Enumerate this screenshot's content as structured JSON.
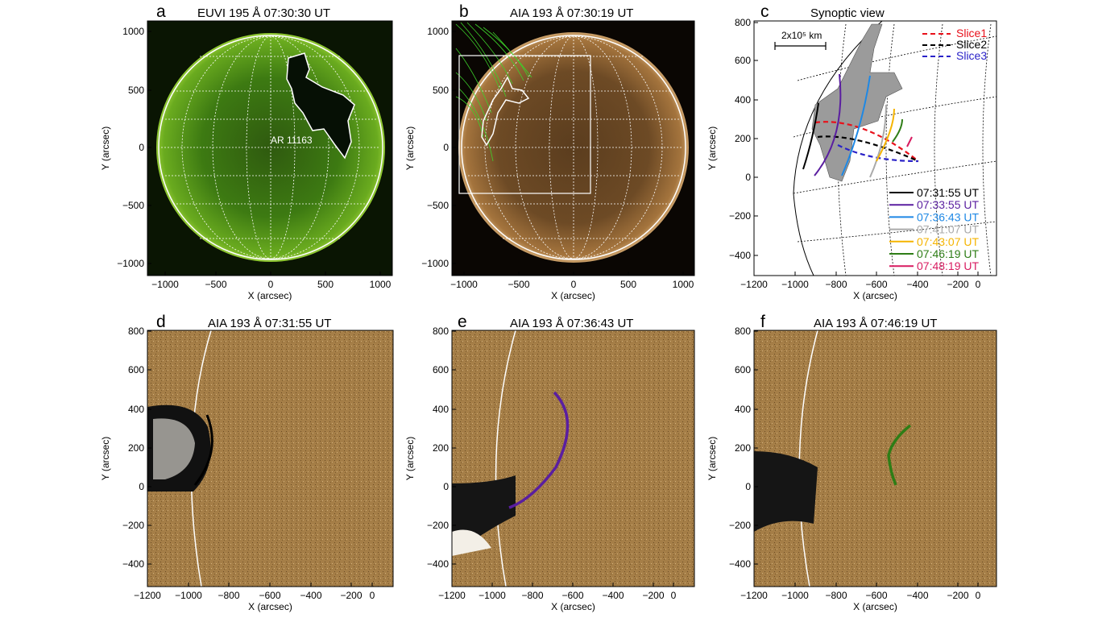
{
  "figure": {
    "panels": [
      {
        "letter": "a",
        "title": "EUVI 195 Å 07:30:30 UT",
        "xlabel": "X (arcsec)",
        "ylabel": "Y (arcsec)",
        "xticks": [
          "−1000",
          "−500",
          "0",
          "500",
          "1000"
        ],
        "yticks": [
          "1000",
          "500",
          "0",
          "−500",
          "−1000"
        ],
        "annotation": "AR 11163"
      },
      {
        "letter": "b",
        "title": "AIA 193 Å 07:30:19 UT",
        "xlabel": "X (arcsec)",
        "ylabel": "Y (arcsec)",
        "xticks": [
          "−1000",
          "−500",
          "0",
          "500",
          "1000"
        ],
        "yticks": [
          "1000",
          "500",
          "0",
          "−500",
          "−1000"
        ]
      },
      {
        "letter": "c",
        "title": "Synoptic view",
        "xlabel": "X (arcsec)",
        "ylabel": "Y (arcsec)",
        "xticks": [
          "−1200",
          "−1000",
          "−800",
          "−600",
          "−400",
          "−200",
          "0"
        ],
        "yticks": [
          "800",
          "600",
          "400",
          "200",
          "0",
          "−200",
          "−400"
        ],
        "scalebar": "2x10⁵ km",
        "slices": [
          {
            "label": "Slice1",
            "color": "#e8111b"
          },
          {
            "label": "Slice2",
            "color": "#000000"
          },
          {
            "label": "Slice3",
            "color": "#2a22c8"
          }
        ],
        "times": [
          {
            "label": "07:31:55 UT",
            "color": "#000000"
          },
          {
            "label": "07:33:55 UT",
            "color": "#5a1ea0"
          },
          {
            "label": "07:36:43 UT",
            "color": "#1e88e5"
          },
          {
            "label": "07:41:07 UT",
            "color": "#aaaaaa"
          },
          {
            "label": "07:43:07 UT",
            "color": "#f5b400"
          },
          {
            "label": "07:46:19 UT",
            "color": "#2e7d16"
          },
          {
            "label": "07:48:19 UT",
            "color": "#d81b60"
          }
        ]
      },
      {
        "letter": "d",
        "title": "AIA 193 Å 07:31:55 UT",
        "xlabel": "X (arcsec)",
        "ylabel": "Y (arcsec)",
        "xticks": [
          "−1200",
          "−1000",
          "−800",
          "−600",
          "−400",
          "−200",
          "0"
        ],
        "yticks": [
          "800",
          "600",
          "400",
          "200",
          "0",
          "−200",
          "−400"
        ]
      },
      {
        "letter": "e",
        "title": "AIA 193 Å 07:36:43 UT",
        "xlabel": "X (arcsec)",
        "ylabel": "Y (arcsec)",
        "xticks": [
          "−1200",
          "−1000",
          "−800",
          "−600",
          "−400",
          "−200",
          "0"
        ],
        "yticks": [
          "800",
          "600",
          "400",
          "200",
          "0",
          "−200",
          "−400"
        ]
      },
      {
        "letter": "f",
        "title": "AIA 193 Å 07:46:19 UT",
        "xlabel": "X (arcsec)",
        "ylabel": "Y (arcsec)",
        "xticks": [
          "−1200",
          "−1000",
          "−800",
          "−600",
          "−400",
          "−200",
          "0"
        ],
        "yticks": [
          "800",
          "600",
          "400",
          "200",
          "0",
          "−200",
          "−400"
        ]
      }
    ]
  }
}
